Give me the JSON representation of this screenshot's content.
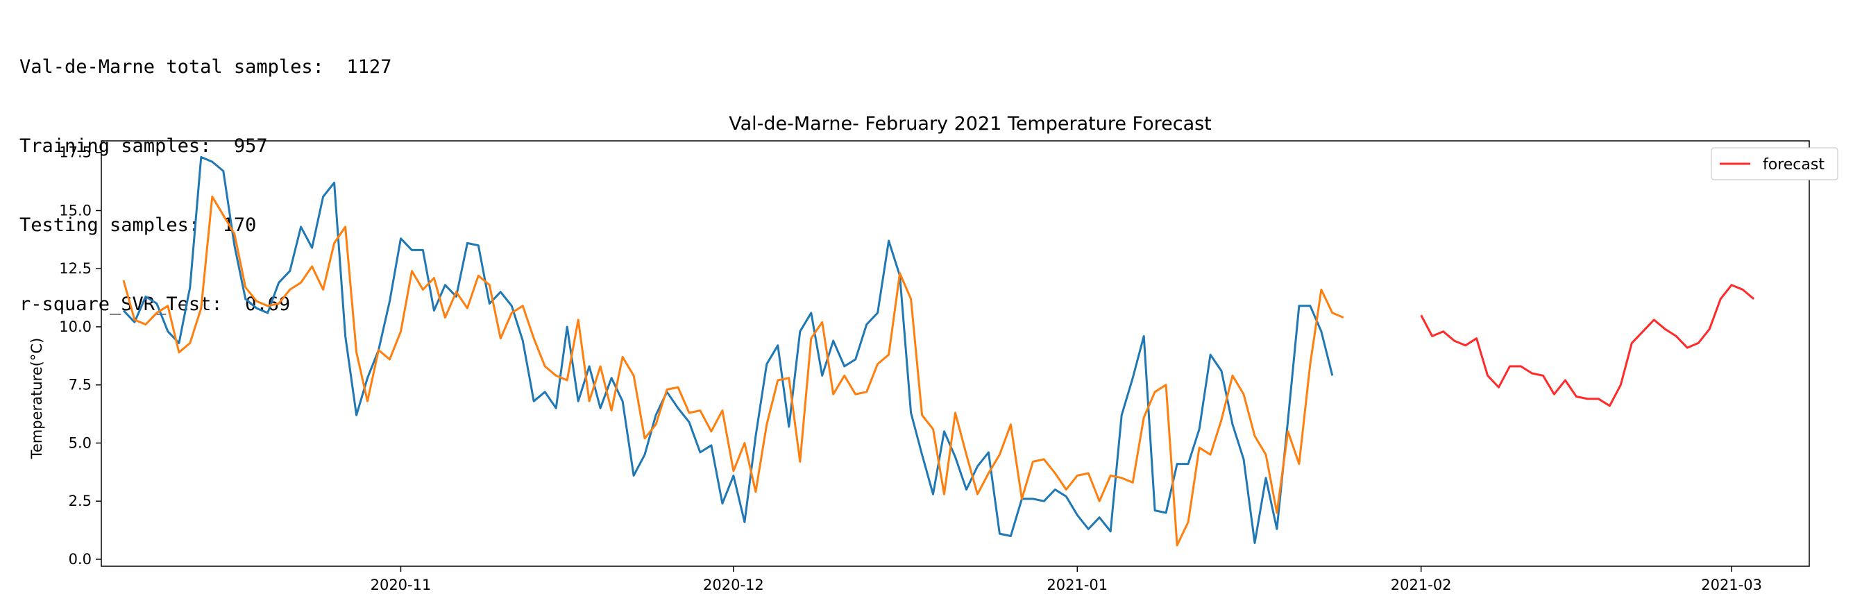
{
  "console": {
    "lines": [
      {
        "label": "Val-de-Marne total samples:",
        "value": "1127"
      },
      {
        "label": "Training samples:",
        "value": "957"
      },
      {
        "label": "Testing samples:",
        "value": "170"
      },
      {
        "label": "r-square_SVR_Test:",
        "value": "0.69"
      }
    ]
  },
  "chart_data": {
    "type": "line",
    "title": "Val-de-Marne- February 2021 Temperature Forecast",
    "xlabel": "",
    "ylabel": "Temperature(°C)",
    "ylim": [
      -0.3,
      18.0
    ],
    "xlim": [
      "2020-10-05",
      "2021-03-08"
    ],
    "x_ticks": [
      "2020-11-01",
      "2020-12-01",
      "2021-01-01",
      "2021-02-01",
      "2021-03-01"
    ],
    "x_tick_labels": [
      "2020-11",
      "2020-12",
      "2021-01",
      "2021-02",
      "2021-03"
    ],
    "y_ticks": [
      0.0,
      2.5,
      5.0,
      7.5,
      10.0,
      12.5,
      15.0,
      17.5
    ],
    "y_tick_labels": [
      "0.0",
      "2.5",
      "5.0",
      "7.5",
      "10.0",
      "12.5",
      "15.0",
      "17.5"
    ],
    "grid": false,
    "legend": {
      "position": "top-right",
      "entries": [
        "forecast"
      ]
    },
    "series": [
      {
        "color": "#1f77b4",
        "start_date": "2020-10-07",
        "values": [
          10.7,
          10.2,
          11.3,
          11.0,
          9.8,
          9.3,
          11.7,
          17.3,
          17.1,
          16.7,
          13.5,
          11.2,
          10.8,
          10.6,
          11.9,
          12.4,
          14.3,
          13.4,
          15.6,
          16.2,
          9.6,
          6.2,
          7.8,
          9.0,
          11.1,
          13.8,
          13.3,
          13.3,
          10.7,
          11.8,
          11.3,
          13.6,
          13.5,
          11.0,
          11.5,
          10.9,
          9.4,
          6.8,
          7.2,
          6.5,
          10.0,
          6.8,
          8.3,
          6.5,
          7.8,
          6.8,
          3.6,
          4.5,
          6.2,
          7.2,
          6.5,
          5.9,
          4.6,
          4.9,
          2.4,
          3.6,
          1.6,
          5.3,
          8.4,
          9.2,
          5.7,
          9.8,
          10.6,
          7.9,
          9.4,
          8.3,
          8.6,
          10.1,
          10.6,
          13.7,
          12.2,
          6.3,
          4.5,
          2.8,
          5.5,
          4.4,
          3.0,
          4.0,
          4.6,
          1.1,
          1.0,
          2.6,
          2.6,
          2.5,
          3.0,
          2.7,
          1.9,
          1.3,
          1.8,
          1.2,
          6.2,
          7.8,
          9.6,
          2.1,
          2.0,
          4.1,
          4.1,
          5.6,
          8.8,
          8.1,
          5.8,
          4.3,
          0.7,
          3.5,
          1.3,
          6.0,
          10.9,
          10.9,
          9.8,
          7.9
        ]
      },
      {
        "color": "#ff7f0e",
        "start_date": "2020-10-07",
        "values": [
          12.0,
          10.3,
          10.1,
          10.6,
          10.9,
          8.9,
          9.3,
          10.8,
          15.6,
          14.8,
          14.0,
          11.7,
          11.1,
          10.9,
          11.0,
          11.6,
          11.9,
          12.6,
          11.6,
          13.6,
          14.3,
          8.9,
          6.8,
          9.0,
          8.6,
          9.8,
          12.4,
          11.6,
          12.1,
          10.4,
          11.5,
          10.8,
          12.2,
          11.8,
          9.5,
          10.6,
          10.9,
          9.5,
          8.3,
          7.9,
          7.7,
          10.3,
          6.8,
          8.3,
          6.4,
          8.7,
          7.9,
          5.2,
          5.8,
          7.3,
          7.4,
          6.3,
          6.4,
          5.5,
          6.4,
          3.8,
          5.0,
          2.9,
          5.8,
          7.7,
          7.8,
          4.2,
          9.5,
          10.2,
          7.1,
          7.9,
          7.1,
          7.2,
          8.4,
          8.8,
          12.3,
          11.2,
          6.2,
          5.6,
          2.8,
          6.3,
          4.5,
          2.8,
          3.7,
          4.5,
          5.8,
          2.6,
          4.2,
          4.3,
          3.7,
          3.0,
          3.6,
          3.7,
          2.5,
          3.6,
          3.5,
          3.3,
          6.1,
          7.2,
          7.5,
          0.6,
          1.6,
          4.8,
          4.5,
          6.0,
          7.9,
          7.1,
          5.3,
          4.5,
          2.0,
          5.5,
          4.1,
          8.4,
          11.6,
          10.6,
          10.4
        ]
      },
      {
        "name": "forecast",
        "color": "#ff2a2a",
        "start_date": "2021-02-01",
        "values": [
          10.5,
          9.6,
          9.8,
          9.4,
          9.2,
          9.5,
          7.9,
          7.4,
          8.3,
          8.3,
          8.0,
          7.9,
          7.1,
          7.7,
          7.0,
          6.9,
          6.9,
          6.6,
          7.5,
          9.3,
          9.8,
          10.3,
          9.9,
          9.6,
          9.1,
          9.3,
          9.9,
          11.2,
          11.8,
          11.6,
          11.2
        ]
      }
    ]
  }
}
